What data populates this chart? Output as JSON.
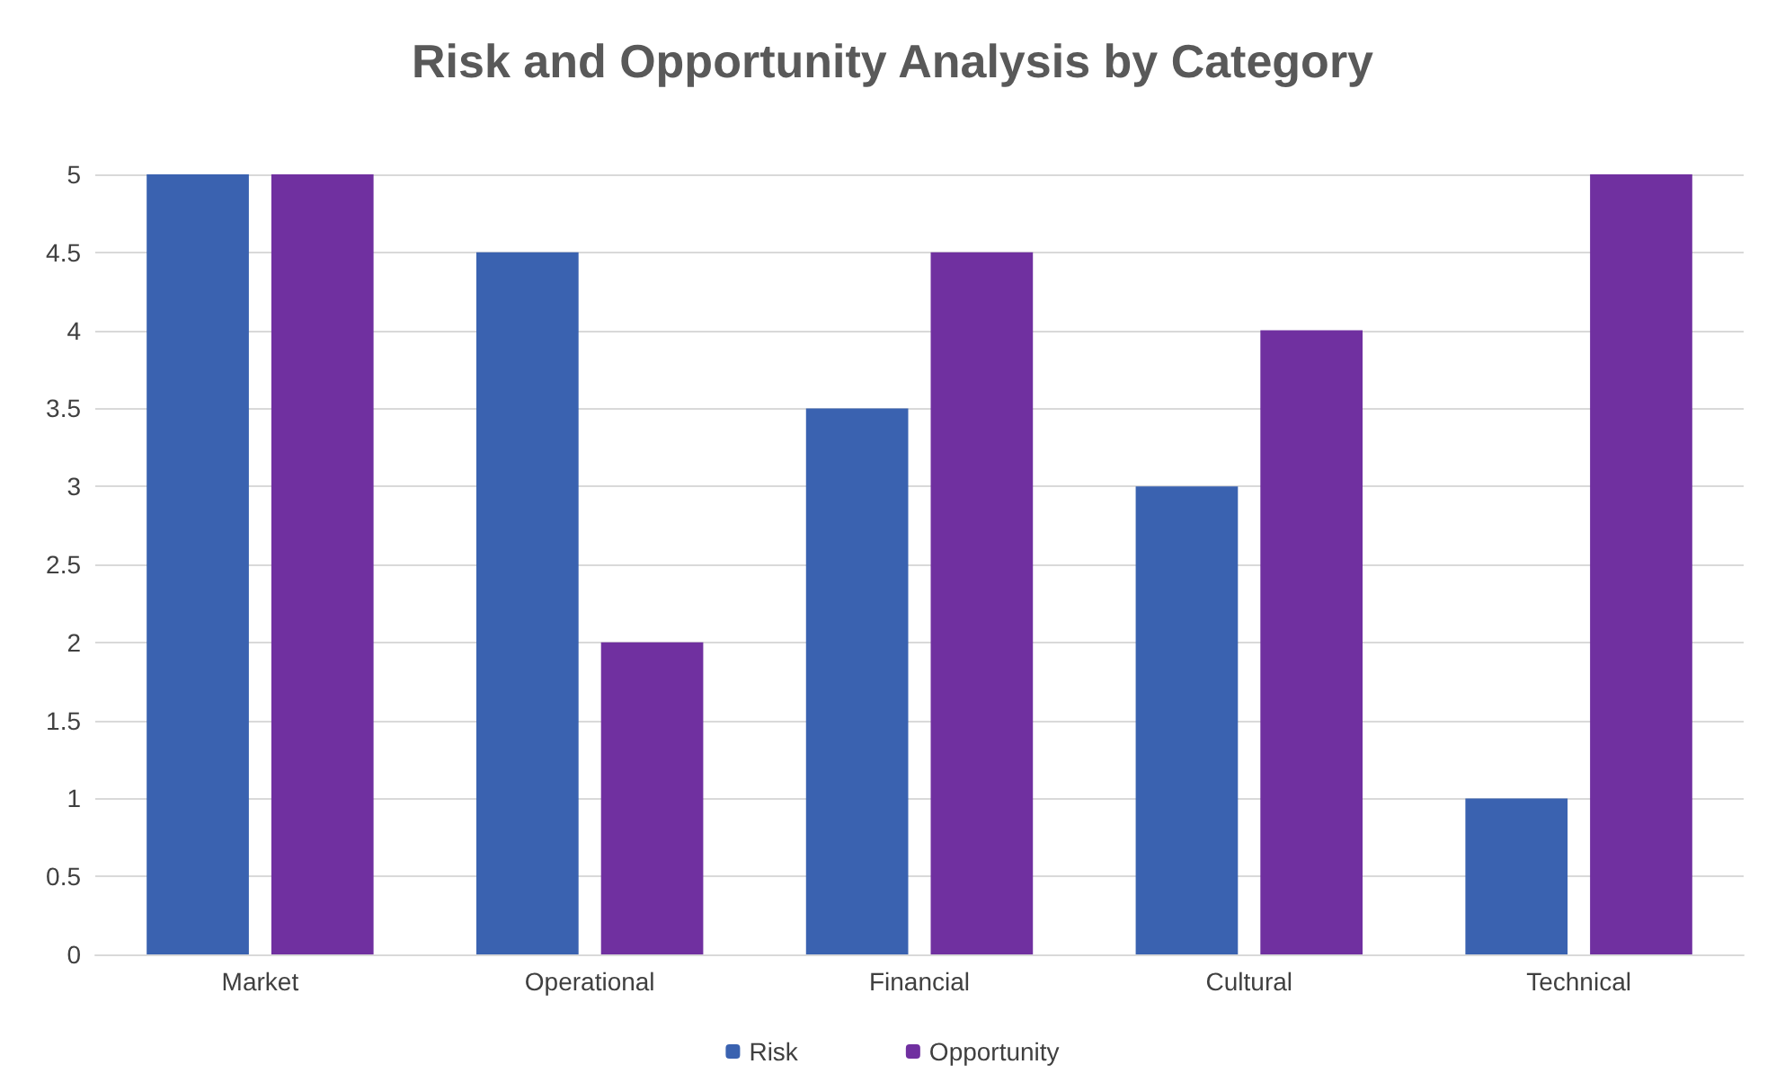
{
  "chart_data": {
    "type": "bar",
    "title": "Risk and Opportunity Analysis by Category",
    "categories": [
      "Market",
      "Operational",
      "Financial",
      "Cultural",
      "Technical"
    ],
    "series": [
      {
        "name": "Risk",
        "color": "#3a62b0",
        "values": [
          5,
          4.5,
          3.5,
          3,
          1
        ]
      },
      {
        "name": "Opportunity",
        "color": "#7030a0",
        "values": [
          5,
          2,
          4.5,
          4,
          5
        ]
      }
    ],
    "ylim": [
      0,
      5
    ],
    "yticks": [
      0,
      0.5,
      1,
      1.5,
      2,
      2.5,
      3,
      3.5,
      4,
      4.5,
      5
    ],
    "grid": "y",
    "legend": "bottom"
  }
}
